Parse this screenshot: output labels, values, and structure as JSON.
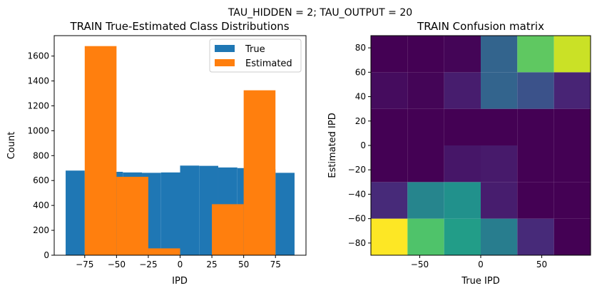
{
  "figure": {
    "suptitle": "TAU_HIDDEN = 2; TAU_OUTPUT = 20"
  },
  "chart_data": [
    {
      "type": "bar",
      "title": "TRAIN True-Estimated Class Distributions",
      "xlabel": "IPD",
      "ylabel": "Count",
      "xlim": [
        -99,
        99
      ],
      "ylim": [
        0,
        1764
      ],
      "xticks": [
        -75,
        -50,
        -25,
        0,
        25,
        50,
        75
      ],
      "xtick_labels": [
        "−75",
        "−50",
        "−25",
        "0",
        "25",
        "50",
        "75"
      ],
      "yticks": [
        0,
        200,
        400,
        600,
        800,
        1000,
        1200,
        1400,
        1600
      ],
      "yticks_labels": [
        "0",
        "200",
        "400",
        "600",
        "800",
        "1000",
        "1200",
        "1400",
        "1600"
      ],
      "legend": {
        "position": "top-right",
        "entries": [
          "True",
          "Estimated"
        ]
      },
      "series": [
        {
          "name": "True",
          "color": "#1f77b4",
          "bins": [
            [
              -90,
              -75
            ],
            [
              -75,
              -60
            ],
            [
              -60,
              -45
            ],
            [
              -45,
              -30
            ],
            [
              -30,
              -15
            ],
            [
              -15,
              0
            ],
            [
              0,
              15
            ],
            [
              15,
              30
            ],
            [
              30,
              45
            ],
            [
              45,
              60
            ],
            [
              60,
              75
            ],
            [
              75,
              90
            ]
          ],
          "values": [
            680,
            660,
            670,
            665,
            662,
            665,
            720,
            718,
            705,
            700,
            690,
            662
          ]
        },
        {
          "name": "Estimated",
          "color": "#ff7f0e",
          "bins": [
            [
              -75,
              -50
            ],
            [
              -50,
              -25
            ],
            [
              -25,
              0
            ],
            [
              0,
              25
            ],
            [
              25,
              50
            ],
            [
              50,
              75
            ]
          ],
          "values": [
            1680,
            630,
            55,
            0,
            410,
            1325
          ]
        }
      ]
    },
    {
      "type": "heatmap",
      "title": "TRAIN Confusion matrix",
      "xlabel": "True IPD",
      "ylabel": "Estimated IPD",
      "xlim": [
        -90,
        90
      ],
      "ylim": [
        -90,
        90
      ],
      "xticks": [
        -50,
        0,
        50
      ],
      "xtick_labels": [
        "−50",
        "0",
        "50"
      ],
      "yticks": [
        -80,
        -60,
        -40,
        -20,
        0,
        20,
        40,
        60,
        80
      ],
      "yticks_labels": [
        "−80",
        "−60",
        "−40",
        "−20",
        "0",
        "20",
        "40",
        "60",
        "80"
      ],
      "colormap": "viridis",
      "x_edges": [
        -90,
        -60,
        -30,
        0,
        30,
        60,
        90
      ],
      "y_edges": [
        -90,
        -60,
        -30,
        0,
        30,
        60,
        90
      ],
      "values_rows_bottom_to_top": [
        [
          1.0,
          0.72,
          0.55,
          0.42,
          0.12,
          0.0
        ],
        [
          0.12,
          0.45,
          0.5,
          0.08,
          0.0,
          0.0
        ],
        [
          0.0,
          0.0,
          0.06,
          0.07,
          0.0,
          0.0
        ],
        [
          0.0,
          0.0,
          0.0,
          0.0,
          0.0,
          0.0
        ],
        [
          0.03,
          0.01,
          0.08,
          0.32,
          0.25,
          0.1
        ],
        [
          0.0,
          0.0,
          0.01,
          0.32,
          0.75,
          0.92
        ]
      ]
    }
  ]
}
